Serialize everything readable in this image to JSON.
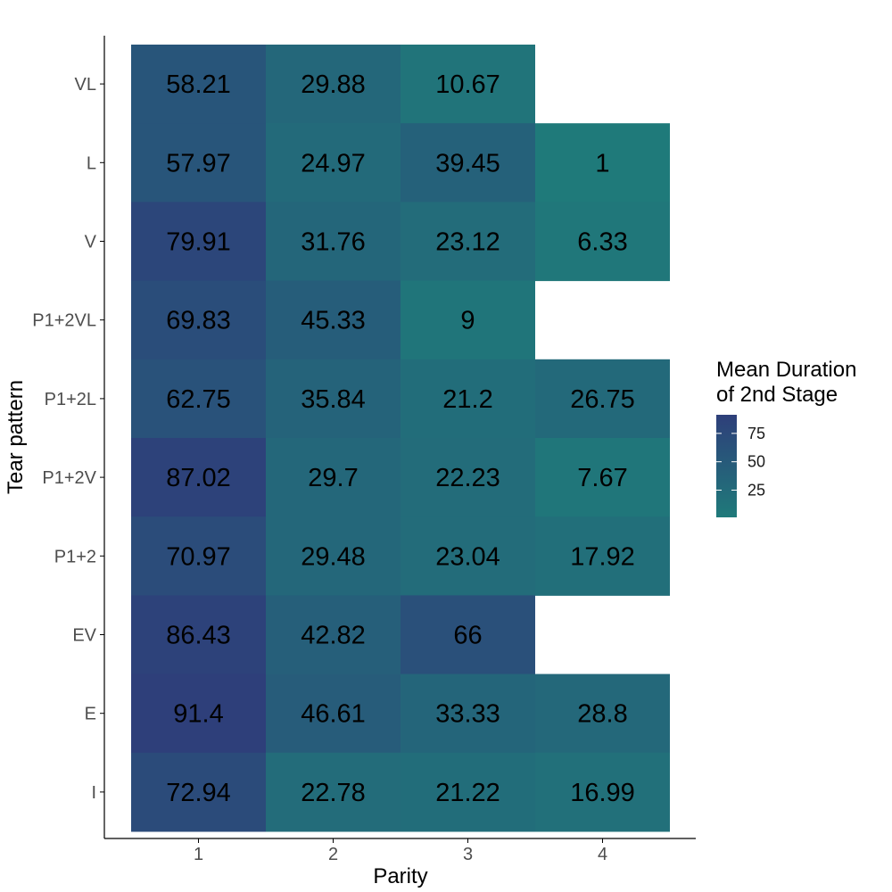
{
  "chart_data": {
    "type": "heatmap",
    "xlabel": "Parity",
    "ylabel": "Tear pattern",
    "x_categories": [
      "1",
      "2",
      "3",
      "4"
    ],
    "y_categories": [
      "VL",
      "L",
      "V",
      "P1+2VL",
      "P1+2L",
      "P1+2V",
      "P1+2",
      "EV",
      "E",
      "I"
    ],
    "values": [
      [
        58.21,
        29.88,
        10.67,
        null
      ],
      [
        57.97,
        24.97,
        39.45,
        1
      ],
      [
        79.91,
        31.76,
        23.12,
        6.33
      ],
      [
        69.83,
        45.33,
        9,
        null
      ],
      [
        62.75,
        35.84,
        21.2,
        26.75
      ],
      [
        87.02,
        29.7,
        22.23,
        7.67
      ],
      [
        70.97,
        29.48,
        23.04,
        17.92
      ],
      [
        86.43,
        42.82,
        66,
        null
      ],
      [
        91.4,
        46.61,
        33.33,
        28.8
      ],
      [
        72.94,
        22.78,
        21.22,
        16.99
      ]
    ],
    "legend": {
      "title_lines": [
        "Mean Duration",
        "of 2nd Stage"
      ],
      "ticks": [
        75,
        50,
        25
      ],
      "placement": "right",
      "range": [
        1,
        91.4
      ]
    },
    "colors": {
      "low": "#1f7a7a",
      "high": "#2e3f7a"
    },
    "grid": false
  }
}
